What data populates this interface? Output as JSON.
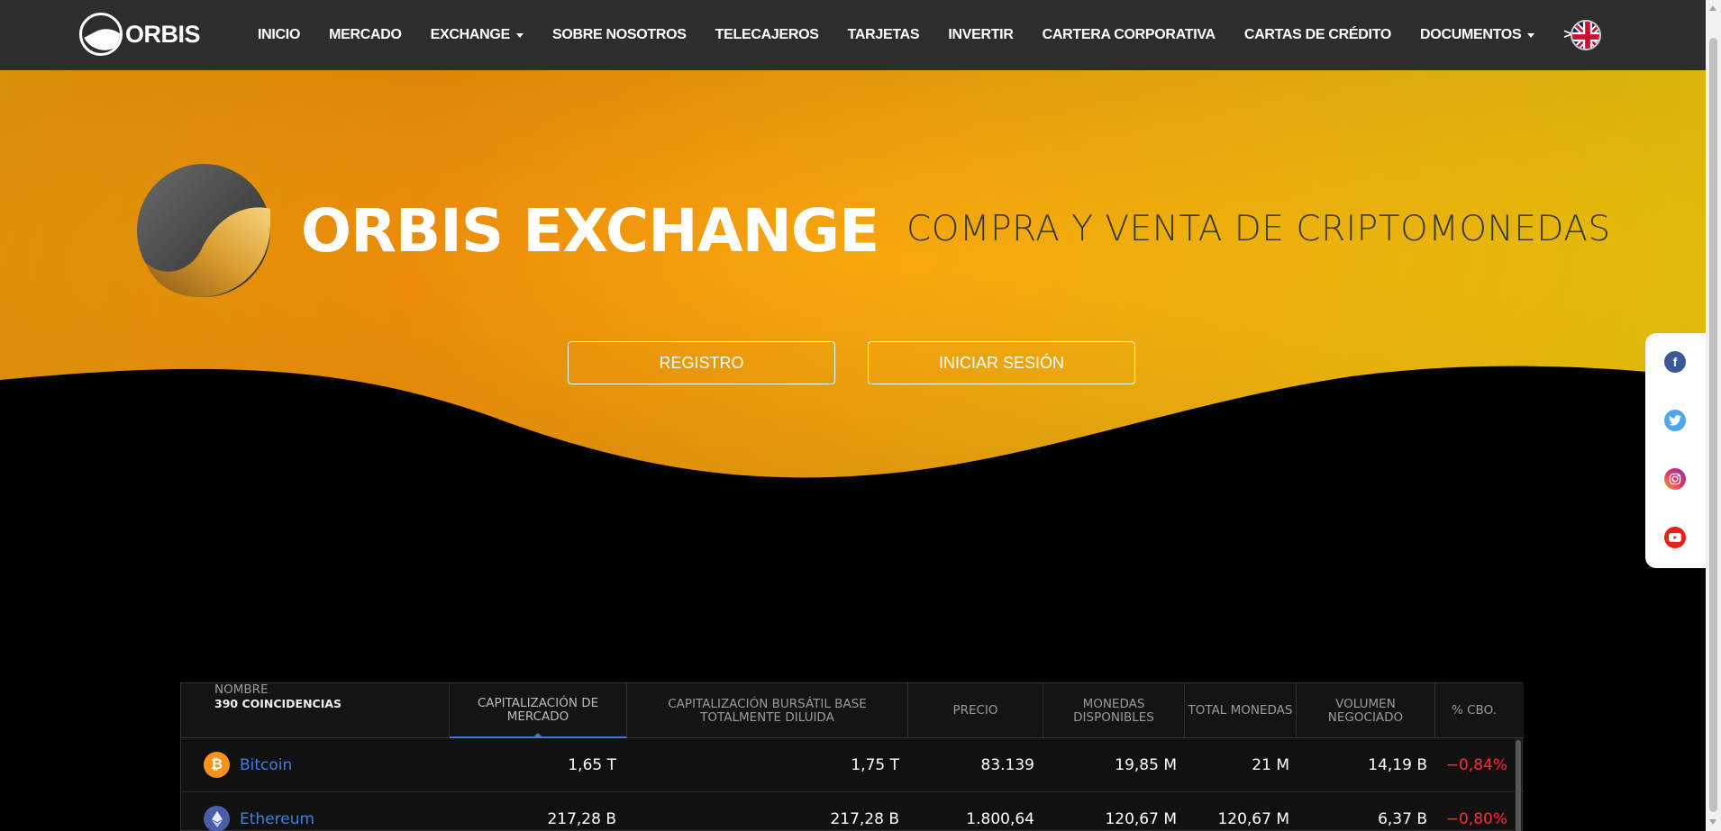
{
  "nav": {
    "logo_text": "ORBIS",
    "items": [
      {
        "label": "INICIO",
        "dropdown": false
      },
      {
        "label": "MERCADO",
        "dropdown": false
      },
      {
        "label": "EXCHANGE",
        "dropdown": true
      },
      {
        "label": "SOBRE NOSOTROS",
        "dropdown": false
      },
      {
        "label": "TELECAJEROS",
        "dropdown": false
      },
      {
        "label": "TARJETAS",
        "dropdown": false
      },
      {
        "label": "INVERTIR",
        "dropdown": false
      },
      {
        "label": "CARTERA CORPORATIVA",
        "dropdown": false
      },
      {
        "label": "CARTAS DE CRÉDITO",
        "dropdown": false
      },
      {
        "label": "DOCUMENTOS",
        "dropdown": true
      },
      {
        "label": ">>",
        "dropdown": true
      }
    ],
    "language_icon": "uk-flag-icon"
  },
  "hero": {
    "title": "ORBIS EXCHANGE",
    "subtitle": "COMPRA Y VENTA DE CRIPTOMONEDAS",
    "register_label": "REGISTRO",
    "login_label": "INICIAR SESIÓN"
  },
  "social": {
    "icons": [
      "facebook-icon",
      "twitter-icon",
      "instagram-icon",
      "youtube-icon"
    ]
  },
  "table": {
    "name_header": "NOMBRE",
    "matches": "390 COINCIDENCIAS",
    "headers": [
      "CAPITALIZACIÓN DE MERCADO",
      "CAPITALIZACIÓN BURSÁTIL BASE TOTALMENTE DILUIDA",
      "PRECIO",
      "MONEDAS DISPONIBLES",
      "TOTAL MONEDAS",
      "VOLUMEN NEGOCIADO",
      "% CBO."
    ],
    "rows": [
      {
        "name": "Bitcoin",
        "icon": "bitcoin-icon",
        "market_cap": "1,65 T",
        "diluted_cap": "1,75 T",
        "price": "83.139",
        "available": "19,85 M",
        "total": "21 M",
        "volume": "14,19 B",
        "change": "−0,84%"
      },
      {
        "name": "Ethereum",
        "icon": "ethereum-icon",
        "market_cap": "217,28 B",
        "diluted_cap": "217,28 B",
        "price": "1.800,64",
        "available": "120,67 M",
        "total": "120,67 M",
        "volume": "6,37 B",
        "change": "−0,80%"
      }
    ]
  },
  "colors": {
    "nav_bg": "#2d2d2d",
    "hero_orange": "#f7940a",
    "hero_yellow": "#fad00c",
    "link_blue": "#3d7fe6",
    "negative_red": "#ff2a3a",
    "active_tab": "#3b7bd9"
  }
}
